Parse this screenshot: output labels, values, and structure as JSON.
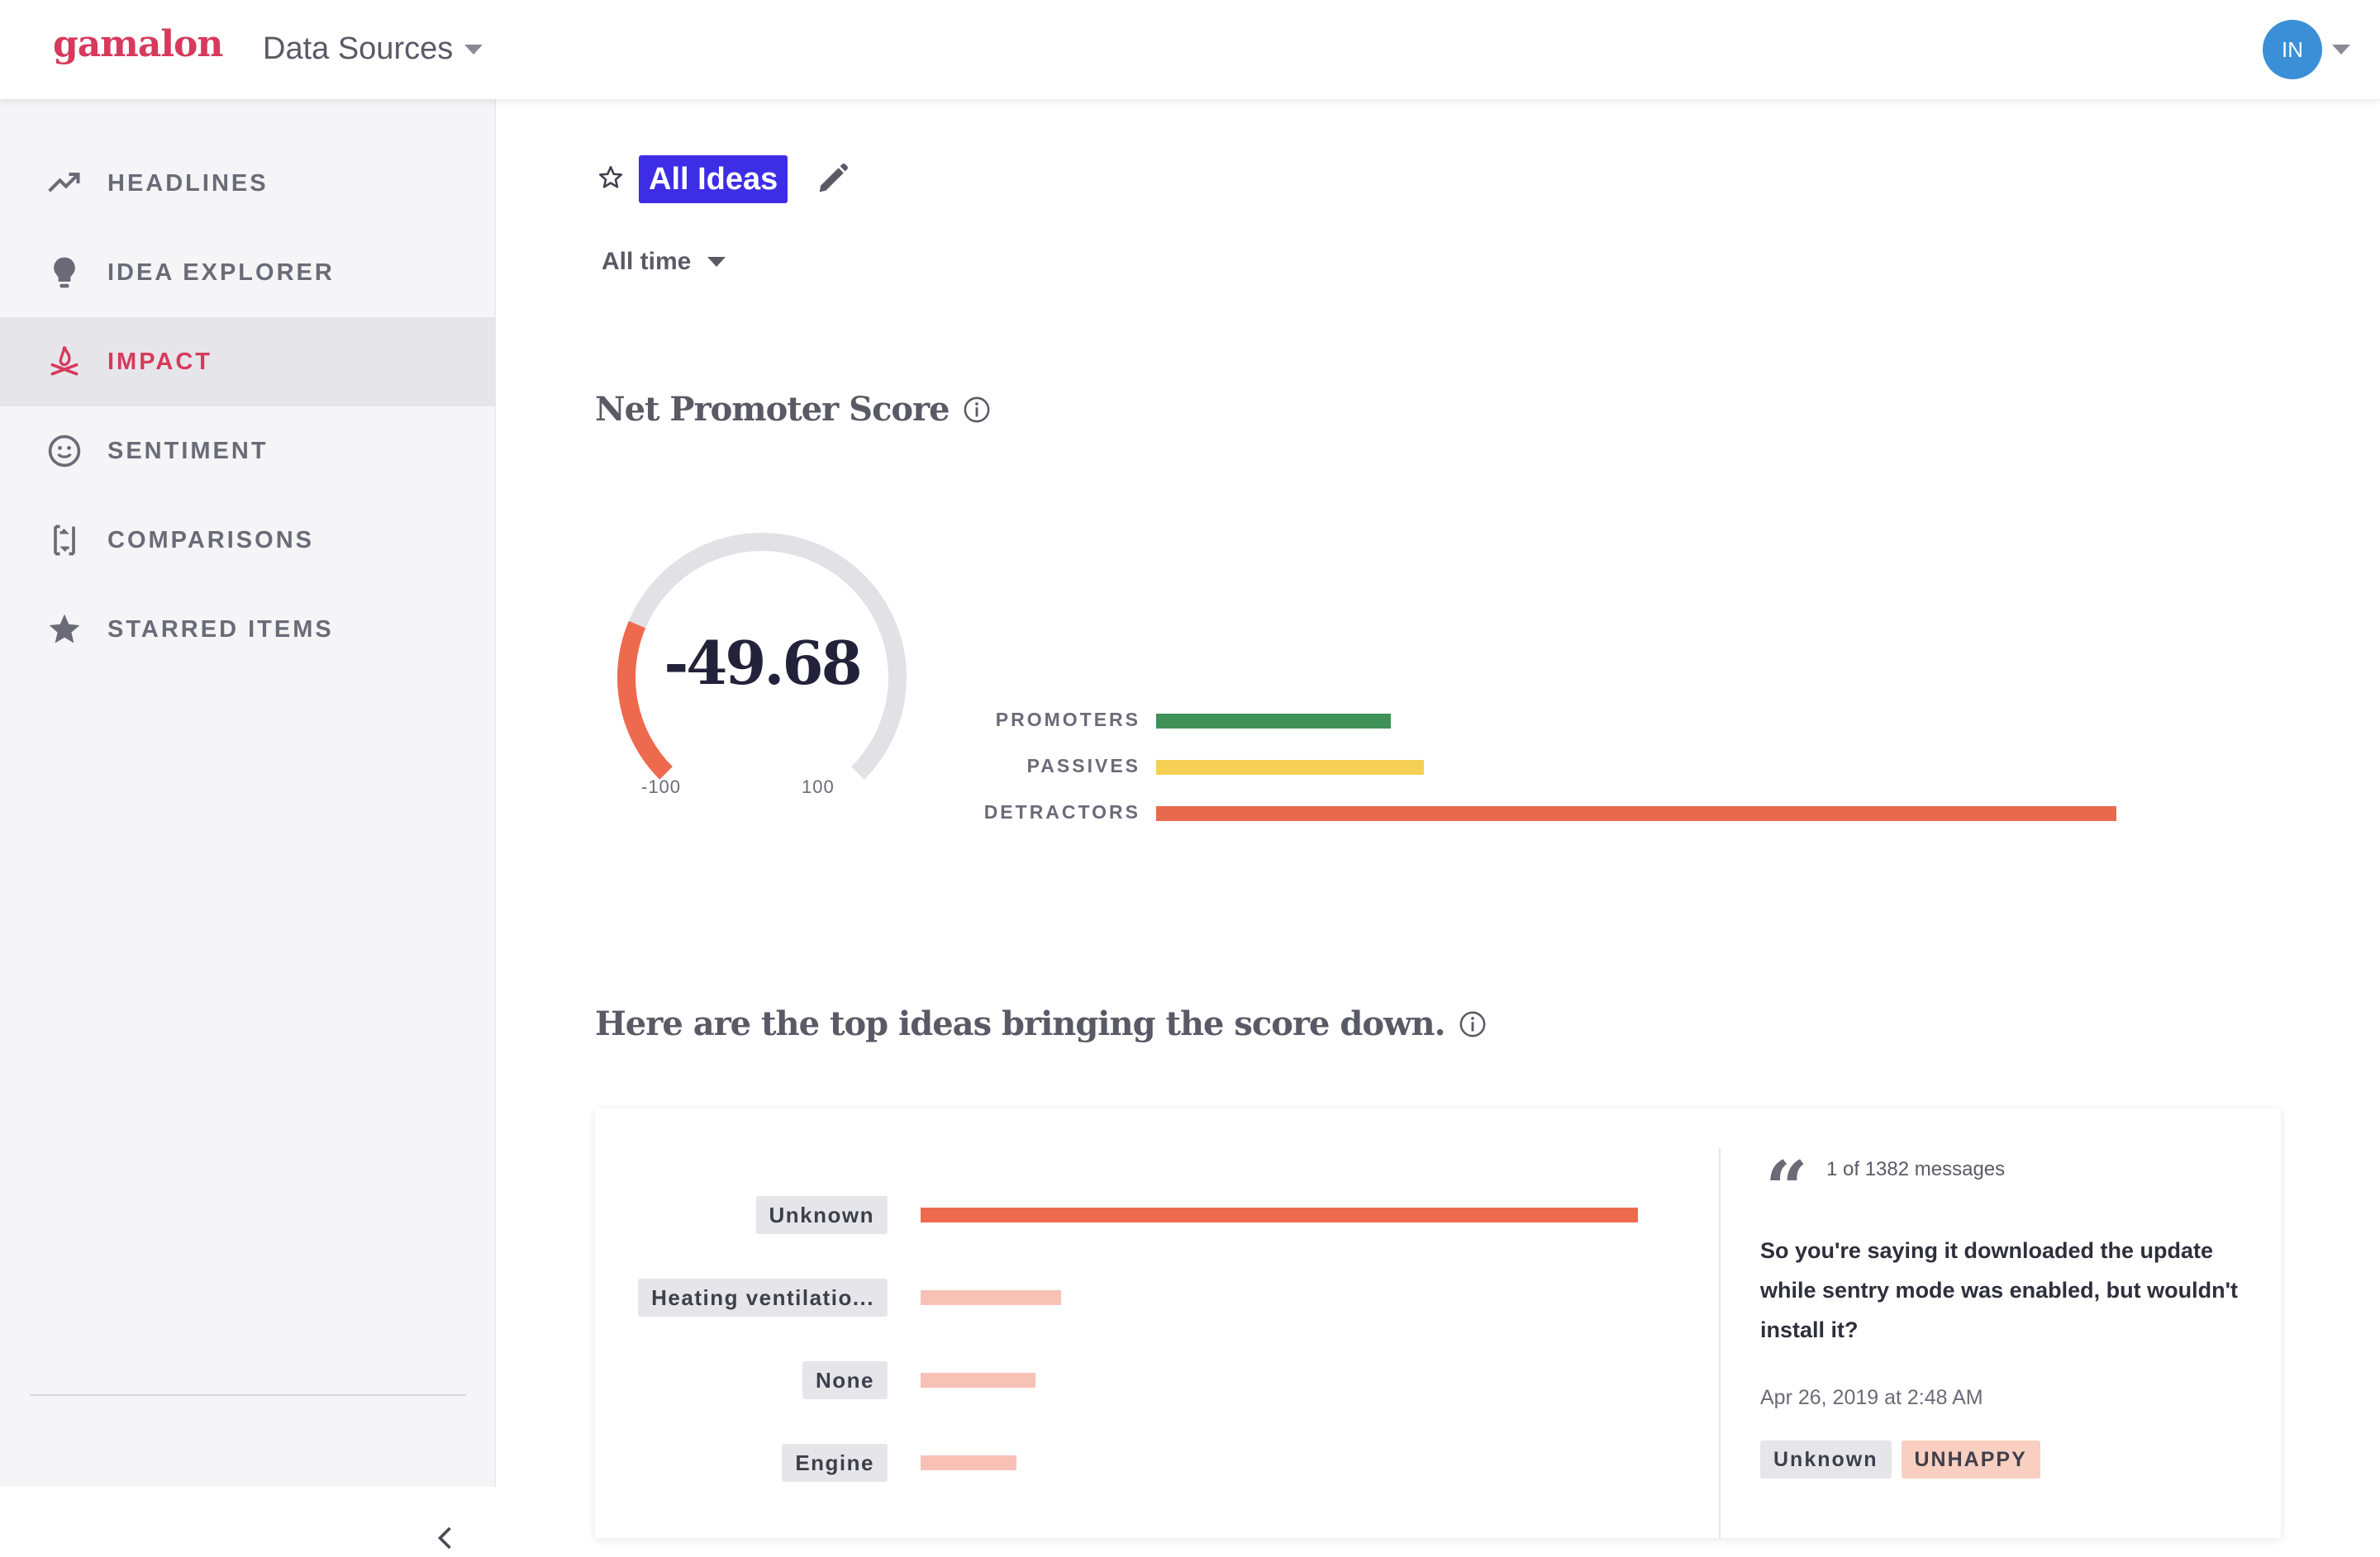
{
  "header": {
    "logo": "gamalon",
    "data_sources": "Data Sources",
    "avatar_initials": "IN"
  },
  "sidebar": {
    "items": [
      {
        "label": "HEADLINES",
        "icon": "trending-up-icon",
        "active": false
      },
      {
        "label": "IDEA EXPLORER",
        "icon": "lightbulb-icon",
        "active": false
      },
      {
        "label": "IMPACT",
        "icon": "campfire-icon",
        "active": true
      },
      {
        "label": "SENTIMENT",
        "icon": "smiley-icon",
        "active": false
      },
      {
        "label": "COMPARISONS",
        "icon": "compare-arrows-icon",
        "active": false
      },
      {
        "label": "STARRED ITEMS",
        "icon": "star-icon",
        "active": false
      }
    ]
  },
  "main": {
    "title": "All Ideas",
    "time_filter": "All time",
    "nps_section_title": "Net Promoter Score",
    "top_ideas_title": "Here are the top ideas bringing the score down."
  },
  "gauge": {
    "value": "-49.68",
    "min_label": "-100",
    "max_label": "100",
    "score": -49.68,
    "min": -100,
    "max": 100
  },
  "nps_breakdown": {
    "rows": [
      {
        "label": "PROMOTERS",
        "share": 0.244,
        "color": "#3f9158"
      },
      {
        "label": "PASSIVES",
        "share": 0.279,
        "color": "#f5cf53"
      },
      {
        "label": "DETRACTORS",
        "share": 1.0,
        "color": "#e86a4e"
      }
    ]
  },
  "top_ideas": [
    {
      "label": "Unknown",
      "share": 1.0,
      "color": "#ee6a4f"
    },
    {
      "label": "Heating ventilatio...",
      "share": 0.196,
      "color": "#f7c1b6"
    },
    {
      "label": "None",
      "share": 0.16,
      "color": "#f7c1b6"
    },
    {
      "label": "Engine",
      "share": 0.134,
      "color": "#f7c1b6"
    }
  ],
  "message": {
    "count": "1 of 1382 messages",
    "text": "So you're saying it downloaded the update while sentry mode was enabled, but wouldn't install it?",
    "date": "Apr 26, 2019 at 2:48 AM",
    "tags": [
      {
        "label": "Unknown",
        "bg": "#e6e6ea"
      },
      {
        "label": "UNHAPPY",
        "bg": "#f8cfc0"
      }
    ]
  },
  "colors": {
    "accent": "#d63a5c",
    "title_chip": "#3d2ee6",
    "gauge_track": "#e1e1e6",
    "gauge_fill": "#ee6a4f"
  }
}
